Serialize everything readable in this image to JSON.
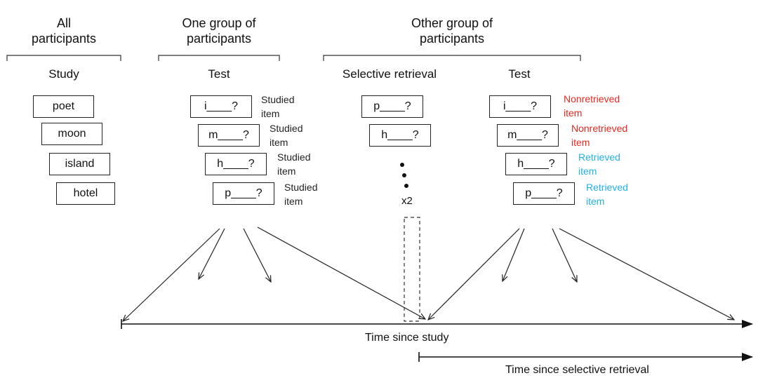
{
  "headers": {
    "all": "All\nparticipants",
    "one": "One group of\nparticipants",
    "other": "Other group of\nparticipants"
  },
  "columns": {
    "study": "Study",
    "test1": "Test",
    "selective": "Selective retrieval",
    "test2": "Test"
  },
  "study_items": [
    "poet",
    "moon",
    "island",
    "hotel"
  ],
  "test1_items": [
    {
      "cue": "i____?",
      "note": "Studied\nitem"
    },
    {
      "cue": "m____?",
      "note": "Studied\nitem"
    },
    {
      "cue": "h____?",
      "note": "Studied\nitem"
    },
    {
      "cue": "p____?",
      "note": "Studied\nitem"
    }
  ],
  "selective_items": [
    "p____?",
    "h____?"
  ],
  "repeat_label": "x2",
  "test2_items": [
    {
      "cue": "i____?",
      "note": "Nonretrieved\nitem",
      "status": "nonretrieved"
    },
    {
      "cue": "m____?",
      "note": "Nonretrieved\nitem",
      "status": "nonretrieved"
    },
    {
      "cue": "h____?",
      "note": "Retrieved\nitem",
      "status": "retrieved"
    },
    {
      "cue": "p____?",
      "note": "Retrieved\nitem",
      "status": "retrieved"
    }
  ],
  "axes": {
    "time_since_study": "Time since study",
    "time_since_selective": "Time since selective retrieval"
  },
  "colors": {
    "nonretrieved": "#e8281e",
    "retrieved": "#22b0e6"
  }
}
